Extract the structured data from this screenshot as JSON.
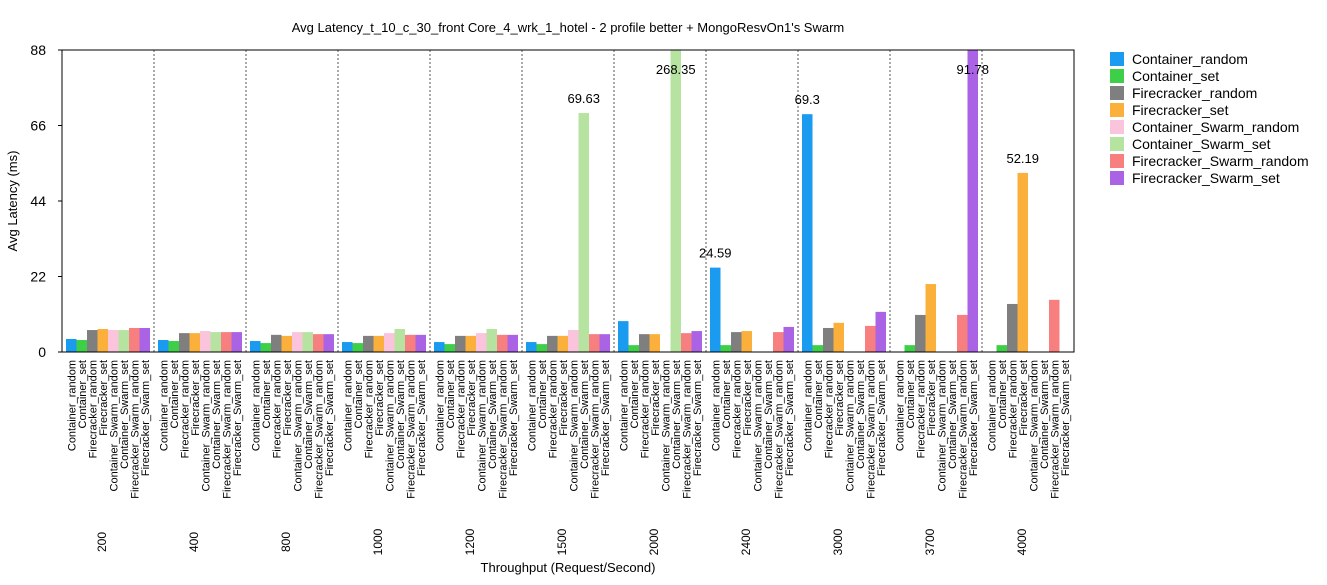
{
  "chart_data": {
    "type": "bar",
    "title": "Avg Latency_t_10_c_30_front Core_4_wrk_1_hotel - 2 profile better + MongoResvOn1's Swarm",
    "x_label": "Throughput (Request/Second)",
    "y_label": "Avg Latency (ms)",
    "categories": [
      "200",
      "400",
      "800",
      "1000",
      "1200",
      "1500",
      "2000",
      "2400",
      "3000",
      "3700",
      "4000"
    ],
    "ylim": [
      0,
      88
    ],
    "yticks": [
      0,
      22,
      44,
      66,
      88
    ],
    "group_separators": true,
    "legend": "right",
    "series": [
      {
        "name": "Container_random",
        "color": "#1a9bf0",
        "values": [
          3.8,
          3.5,
          3.2,
          2.9,
          2.9,
          2.9,
          9,
          24.59,
          69.3,
          null,
          null
        ],
        "value_labels": [
          null,
          null,
          null,
          null,
          null,
          null,
          null,
          "24.59",
          "69.3",
          null,
          null
        ]
      },
      {
        "name": "Container_set",
        "color": "#3ecf48",
        "values": [
          3.5,
          3.2,
          2.6,
          2.6,
          2.3,
          2.3,
          2,
          2,
          2,
          2,
          2
        ]
      },
      {
        "name": "Firecracker_random",
        "color": "#7f7f7f",
        "values": [
          6.4,
          5.5,
          5,
          4.7,
          4.7,
          4.7,
          5.2,
          5.8,
          7,
          10.8,
          14
        ]
      },
      {
        "name": "Firecracker_set",
        "color": "#fbb03b",
        "values": [
          6.7,
          5.5,
          4.7,
          4.7,
          4.7,
          4.7,
          5.2,
          6.1,
          8.5,
          19.8,
          52.19
        ],
        "value_labels": [
          null,
          null,
          null,
          null,
          null,
          null,
          null,
          null,
          null,
          null,
          "52.19"
        ]
      },
      {
        "name": "Container_Swarm_random",
        "color": "#f9c4dc",
        "values": [
          6.4,
          6.1,
          5.8,
          5.5,
          5.5,
          6.4,
          null,
          null,
          null,
          null,
          null
        ]
      },
      {
        "name": "Container_Swarm_set",
        "color": "#b7e3a0",
        "values": [
          6.4,
          5.8,
          5.8,
          6.7,
          6.7,
          69.63,
          268.35,
          null,
          null,
          null,
          null
        ],
        "value_labels": [
          null,
          null,
          null,
          null,
          null,
          "69.63",
          "268.35",
          null,
          null,
          null,
          null
        ]
      },
      {
        "name": "Firecracker_Swarm_random",
        "color": "#f77f7f",
        "values": [
          7,
          5.8,
          5.2,
          5,
          5,
          5.2,
          5.5,
          5.8,
          7.6,
          10.8,
          15.2
        ]
      },
      {
        "name": "Firecracker_Swarm_set",
        "color": "#ab63e6",
        "values": [
          7,
          5.8,
          5.2,
          5,
          5,
          5.2,
          6.1,
          7.3,
          11.7,
          91.78,
          null
        ],
        "value_labels": [
          null,
          null,
          null,
          null,
          null,
          null,
          null,
          null,
          null,
          "91.78",
          null
        ]
      }
    ]
  }
}
